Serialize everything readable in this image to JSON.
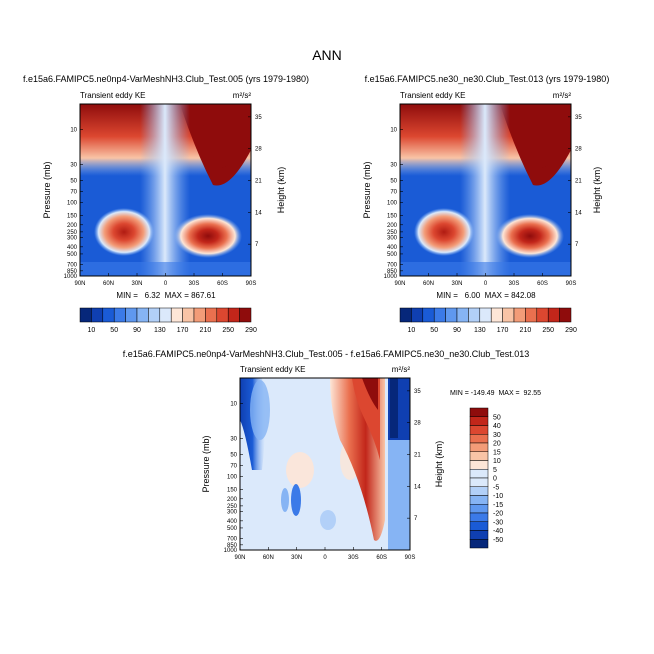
{
  "figure": {
    "title": "ANN"
  },
  "chart_data": [
    {
      "type": "heatmap",
      "title": "f.e15a6.FAMIPC5.ne0np4-VarMeshNH3.Club_Test.005 (yrs 1979-1980)",
      "subtitle": "Transient eddy KE",
      "units_label": "m²/s²",
      "xlabel": "",
      "ylabel": "Pressure (mb)",
      "y2label": "Height (km)",
      "x_ticks": [
        "90N",
        "60N",
        "30N",
        "0",
        "30S",
        "60S",
        "90S"
      ],
      "y_ticks_left": [
        "10",
        "30",
        "50",
        "70",
        "100",
        "150",
        "200",
        "250",
        "300",
        "400",
        "500",
        "700",
        "850",
        "1000"
      ],
      "y_ticks_right": [
        "35",
        "28",
        "21",
        "14",
        "7"
      ],
      "stats_text": "MIN =   6.32  MAX = 867.61",
      "min": 6.32,
      "max": 867.61
    },
    {
      "type": "heatmap",
      "title": "f.e15a6.FAMIPC5.ne30_ne30.Club_Test.013 (yrs 1979-1980)",
      "subtitle": "Transient eddy KE",
      "units_label": "m²/s²",
      "xlabel": "",
      "ylabel": "Pressure (mb)",
      "y2label": "Height (km)",
      "x_ticks": [
        "90N",
        "60N",
        "30N",
        "0",
        "30S",
        "60S",
        "90S"
      ],
      "y_ticks_left": [
        "10",
        "30",
        "50",
        "70",
        "100",
        "150",
        "200",
        "250",
        "300",
        "400",
        "500",
        "700",
        "850",
        "1000"
      ],
      "y_ticks_right": [
        "35",
        "28",
        "21",
        "14",
        "7"
      ],
      "stats_text": "MIN =   6.00  MAX = 842.08",
      "min": 6.0,
      "max": 842.08
    },
    {
      "type": "heatmap",
      "title": "f.e15a6.FAMIPC5.ne0np4-VarMeshNH3.Club_Test.005 - f.e15a6.FAMIPC5.ne30_ne30.Club_Test.013",
      "subtitle": "Transient eddy KE",
      "units_label": "m²/s²",
      "xlabel": "",
      "ylabel": "Pressure (mb)",
      "y2label": "Height (km)",
      "x_ticks": [
        "90N",
        "60N",
        "30N",
        "0",
        "30S",
        "60S",
        "90S"
      ],
      "y_ticks_left": [
        "10",
        "30",
        "50",
        "70",
        "100",
        "150",
        "200",
        "250",
        "300",
        "400",
        "500",
        "700",
        "850",
        "1000"
      ],
      "y_ticks_right": [
        "35",
        "28",
        "21",
        "14",
        "7"
      ],
      "stats_text": "MIN = -149.49  MAX =  92.55",
      "min": -149.49,
      "max": 92.55
    }
  ],
  "colorbar_abs": {
    "labels": [
      "10",
      "50",
      "90",
      "130",
      "170",
      "210",
      "250",
      "290"
    ],
    "colors": [
      "#06277a",
      "#0f3fb1",
      "#1a5bd6",
      "#3b7ae8",
      "#5f98ef",
      "#86b4f4",
      "#b2d0f8",
      "#dbe9fb",
      "#fde6d7",
      "#f9c4a6",
      "#f39c78",
      "#ea704f",
      "#dc4730",
      "#c2261a",
      "#8f0c0c"
    ]
  },
  "colorbar_diff": {
    "labels": [
      "50",
      "40",
      "30",
      "20",
      "15",
      "10",
      "5",
      "0",
      "-5",
      "-10",
      "-15",
      "-20",
      "-30",
      "-40",
      "-50"
    ],
    "colors": [
      "#8f0c0c",
      "#c2261a",
      "#dc4730",
      "#ea704f",
      "#f39c78",
      "#f9c4a6",
      "#fde6d7",
      "#dbe9fb",
      "#dbe9fb",
      "#b2d0f8",
      "#86b4f4",
      "#5f98ef",
      "#3b7ae8",
      "#1a5bd6",
      "#0f3fb1",
      "#06277a"
    ]
  }
}
